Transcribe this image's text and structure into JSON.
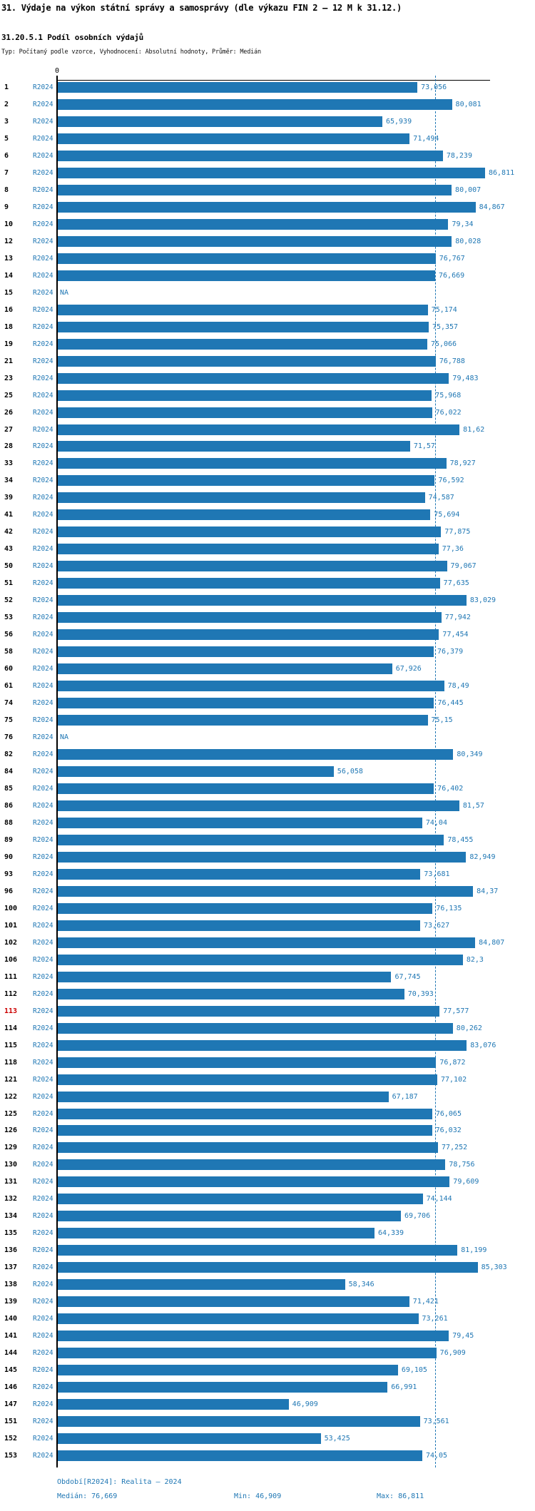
{
  "header": {
    "title": "31. Výdaje na výkon státní správy a samosprávy (dle výkazu FIN 2 – 12 M k 31.12.)",
    "subtitle": "31.20.5.1 Podíl osobních výdajů",
    "type_line": "Typ: Počítaný podle vzorce, Vyhodnocení: Absolutní hodnoty, Průměr: Medián"
  },
  "chart_data": {
    "type": "bar",
    "orientation": "horizontal",
    "series_label": "R2024",
    "axis_zero_label": "0",
    "xlim": [
      0,
      88
    ],
    "grid": false,
    "bar_color": "#1f77b4",
    "median_value": 76.669,
    "median_line": true,
    "highlight_category": "113",
    "highlight_color": "#cc0000",
    "na_text": "NA",
    "categories": [
      "1",
      "2",
      "3",
      "5",
      "6",
      "7",
      "8",
      "9",
      "10",
      "12",
      "13",
      "14",
      "15",
      "16",
      "18",
      "19",
      "21",
      "23",
      "25",
      "26",
      "27",
      "28",
      "33",
      "34",
      "39",
      "41",
      "42",
      "43",
      "50",
      "51",
      "52",
      "53",
      "56",
      "58",
      "60",
      "61",
      "74",
      "75",
      "76",
      "82",
      "84",
      "85",
      "86",
      "88",
      "89",
      "90",
      "93",
      "96",
      "100",
      "101",
      "102",
      "106",
      "111",
      "112",
      "113",
      "114",
      "115",
      "118",
      "121",
      "122",
      "125",
      "126",
      "129",
      "130",
      "131",
      "132",
      "134",
      "135",
      "136",
      "137",
      "138",
      "139",
      "140",
      "141",
      "144",
      "145",
      "146",
      "147",
      "151",
      "152",
      "153"
    ],
    "values": [
      73.056,
      80.081,
      65.939,
      71.494,
      78.239,
      86.811,
      80.007,
      84.867,
      79.34,
      80.028,
      76.767,
      76.669,
      null,
      75.174,
      75.357,
      75.066,
      76.788,
      79.483,
      75.968,
      76.022,
      81.62,
      71.57,
      78.927,
      76.592,
      74.587,
      75.694,
      77.875,
      77.36,
      79.067,
      77.635,
      83.029,
      77.942,
      77.454,
      76.379,
      67.926,
      78.49,
      76.445,
      75.15,
      null,
      80.349,
      56.058,
      76.402,
      81.57,
      74.04,
      78.455,
      82.949,
      73.681,
      84.37,
      76.135,
      73.627,
      84.807,
      82.3,
      67.745,
      70.393,
      77.577,
      80.262,
      83.076,
      76.872,
      77.102,
      67.187,
      76.065,
      76.032,
      77.252,
      78.756,
      79.609,
      74.144,
      69.706,
      64.339,
      81.199,
      85.303,
      58.346,
      71.421,
      73.261,
      79.45,
      76.909,
      69.105,
      66.991,
      46.909,
      73.561,
      53.425,
      74.05
    ],
    "value_labels": [
      "73,056",
      "80,081",
      "65,939",
      "71,494",
      "78,239",
      "86,811",
      "80,007",
      "84,867",
      "79,34",
      "80,028",
      "76,767",
      "76,669",
      "NA",
      "75,174",
      "75,357",
      "75,066",
      "76,788",
      "79,483",
      "75,968",
      "76,022",
      "81,62",
      "71,57",
      "78,927",
      "76,592",
      "74,587",
      "75,694",
      "77,875",
      "77,36",
      "79,067",
      "77,635",
      "83,029",
      "77,942",
      "77,454",
      "76,379",
      "67,926",
      "78,49",
      "76,445",
      "75,15",
      "NA",
      "80,349",
      "56,058",
      "76,402",
      "81,57",
      "74,04",
      "78,455",
      "82,949",
      "73,681",
      "84,37",
      "76,135",
      "73,627",
      "84,807",
      "82,3",
      "67,745",
      "70,393",
      "77,577",
      "80,262",
      "83,076",
      "76,872",
      "77,102",
      "67,187",
      "76,065",
      "76,032",
      "77,252",
      "78,756",
      "79,609",
      "74,144",
      "69,706",
      "64,339",
      "81,199",
      "85,303",
      "58,346",
      "71,421",
      "73,261",
      "79,45",
      "76,909",
      "69,105",
      "66,991",
      "46,909",
      "73,561",
      "53,425",
      "74,05"
    ]
  },
  "footer": {
    "period_line": "Období[R2024]: Realita – 2024",
    "median_label": "Medián: 76,669",
    "min_label": "Min: 46,909",
    "max_label": "Max: 86,811"
  }
}
